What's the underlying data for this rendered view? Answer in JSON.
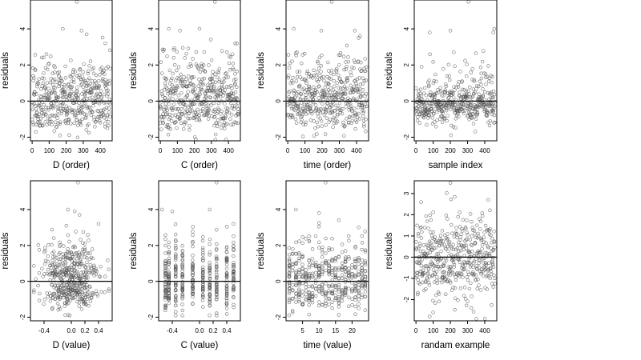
{
  "chart_data": [
    {
      "type": "scatter",
      "xlabel": "D (order)",
      "ylabel": "residuals",
      "xlim": [
        -10,
        470
      ],
      "ylim": [
        -2.2,
        5.6
      ],
      "xticks": [
        0,
        100,
        200,
        300,
        400
      ],
      "xtick_labels": [
        "0",
        "100",
        "200",
        "300",
        "400"
      ],
      "yticks": [
        -2,
        0,
        2,
        4
      ],
      "ytick_labels": [
        "-2",
        "0",
        "2",
        "4"
      ],
      "reference_line_y": 0,
      "n_points": 460,
      "pattern": "order",
      "seed": 11,
      "highlights": [
        [
          262,
          5.5
        ],
        [
          180,
          4.0
        ],
        [
          290,
          3.9
        ],
        [
          320,
          3.7
        ],
        [
          430,
          3.2
        ]
      ]
    },
    {
      "type": "scatter",
      "xlabel": "C (order)",
      "ylabel": "residuals",
      "xlim": [
        -10,
        470
      ],
      "ylim": [
        -2.2,
        5.6
      ],
      "xticks": [
        0,
        100,
        200,
        300,
        400
      ],
      "xtick_labels": [
        "0",
        "100",
        "200",
        "300",
        "400"
      ],
      "yticks": [
        -2,
        0,
        2,
        4
      ],
      "ytick_labels": [
        "-2",
        "0",
        "2",
        "4"
      ],
      "reference_line_y": 0,
      "n_points": 460,
      "pattern": "order",
      "seed": 23,
      "highlights": [
        [
          320,
          5.5
        ],
        [
          50,
          4.0
        ],
        [
          115,
          3.9
        ],
        [
          230,
          4.0
        ],
        [
          440,
          3.2
        ]
      ]
    },
    {
      "type": "scatter",
      "xlabel": "time (order)",
      "ylabel": "residuals",
      "xlim": [
        -10,
        470
      ],
      "ylim": [
        -2.2,
        5.6
      ],
      "xticks": [
        0,
        100,
        200,
        300,
        400
      ],
      "xtick_labels": [
        "0",
        "100",
        "200",
        "300",
        "400"
      ],
      "yticks": [
        -2,
        0,
        2,
        4
      ],
      "ytick_labels": [
        "-2",
        "0",
        "2",
        "4"
      ],
      "reference_line_y": 0,
      "n_points": 460,
      "pattern": "order",
      "seed": 37,
      "highlights": [
        [
          255,
          5.5
        ],
        [
          35,
          4.0
        ],
        [
          195,
          3.9
        ],
        [
          390,
          3.9
        ],
        [
          420,
          3.6
        ]
      ]
    },
    {
      "type": "scatter",
      "xlabel": "sample index",
      "ylabel": "residuals",
      "xlim": [
        -10,
        470
      ],
      "ylim": [
        -2.2,
        5.6
      ],
      "xticks": [
        0,
        100,
        200,
        300,
        400
      ],
      "xtick_labels": [
        "0",
        "100",
        "200",
        "300",
        "400"
      ],
      "yticks": [
        -2,
        0,
        2,
        4
      ],
      "ytick_labels": [
        "-2",
        "0",
        "2",
        "4"
      ],
      "reference_line_y": 0,
      "n_points": 460,
      "pattern": "wave",
      "seed": 41,
      "highlights": [
        [
          305,
          5.5
        ],
        [
          80,
          3.8
        ],
        [
          200,
          3.9
        ],
        [
          455,
          4.0
        ],
        [
          450,
          3.8
        ]
      ]
    },
    {
      "type": "scatter",
      "xlabel": "D (value)",
      "ylabel": "residuals",
      "xlim": [
        -0.6,
        0.6
      ],
      "ylim": [
        -2.2,
        5.6
      ],
      "xticks": [
        -0.4,
        0.0,
        0.2,
        0.4
      ],
      "xtick_labels": [
        "-0.4",
        "0.0",
        "0.2",
        "0.4"
      ],
      "yticks": [
        -2,
        0,
        2,
        4
      ],
      "ytick_labels": [
        "-2",
        "0",
        "2",
        "4"
      ],
      "reference_line_y": 0,
      "n_points": 460,
      "pattern": "value-dense",
      "seed": 53,
      "highlights": [
        [
          0.1,
          5.5
        ],
        [
          -0.05,
          4.0
        ],
        [
          0.05,
          3.9
        ],
        [
          0.12,
          3.7
        ],
        [
          0.4,
          3.2
        ]
      ]
    },
    {
      "type": "scatter",
      "xlabel": "C (value)",
      "ylabel": "residuals",
      "xlim": [
        -0.6,
        0.6
      ],
      "ylim": [
        -2.2,
        5.6
      ],
      "xticks": [
        -0.4,
        0.0,
        0.2,
        0.4
      ],
      "xtick_labels": [
        "-0.4",
        "0.0",
        "0.2",
        "0.4"
      ],
      "yticks": [
        -2,
        0,
        2,
        4
      ],
      "ytick_labels": [
        "-2",
        "0",
        "2",
        "4"
      ],
      "reference_line_y": 0,
      "n_points": 460,
      "pattern": "discrete",
      "x_levels": [
        -0.5,
        -0.45,
        -0.35,
        -0.25,
        -0.1,
        0.05,
        0.15,
        0.25,
        0.4,
        0.5
      ],
      "seed": 67,
      "highlights": [
        [
          0.25,
          5.5
        ],
        [
          -0.55,
          4.0
        ],
        [
          -0.4,
          3.9
        ],
        [
          0.15,
          4.0
        ],
        [
          0.5,
          3.2
        ]
      ]
    },
    {
      "type": "scatter",
      "xlabel": "time (value)",
      "ylabel": "residuals",
      "xlim": [
        0,
        25
      ],
      "ylim": [
        -2.2,
        5.6
      ],
      "xticks": [
        5,
        10,
        15,
        20
      ],
      "xtick_labels": [
        "5",
        "10",
        "15",
        "20"
      ],
      "yticks": [
        -2,
        0,
        2,
        4
      ],
      "ytick_labels": [
        "-2",
        "0",
        "2",
        "4"
      ],
      "reference_line_y": 0,
      "n_points": 460,
      "pattern": "discrete",
      "x_levels": [
        1,
        2,
        3,
        4,
        5,
        6,
        7,
        8,
        9,
        10,
        11,
        12,
        13,
        14,
        15,
        16,
        17,
        18,
        19,
        20,
        21,
        22,
        23,
        24
      ],
      "seed": 71,
      "highlights": [
        [
          12,
          5.5
        ],
        [
          3,
          4.0
        ],
        [
          10,
          3.8
        ],
        [
          16,
          3.4
        ],
        [
          22,
          3.0
        ]
      ]
    },
    {
      "type": "scatter",
      "xlabel": "randam example",
      "ylabel": "residuals",
      "xlim": [
        -10,
        470
      ],
      "ylim": [
        -3.0,
        3.6
      ],
      "xticks": [
        0,
        100,
        200,
        300,
        400
      ],
      "xtick_labels": [
        "0",
        "100",
        "200",
        "300",
        "400"
      ],
      "yticks": [
        -2,
        -1,
        0,
        1,
        2,
        3
      ],
      "ytick_labels": [
        "-2",
        "-1",
        "0",
        "1",
        "2",
        "3"
      ],
      "reference_line_y": 0,
      "n_points": 460,
      "pattern": "random",
      "seed": 89,
      "highlights": [
        [
          200,
          3.5
        ],
        [
          80,
          -2.8
        ],
        [
          100,
          -2.6
        ],
        [
          420,
          2.7
        ],
        [
          30,
          2.6
        ]
      ]
    }
  ],
  "colors": {
    "point": "#555555",
    "frame": "#000000",
    "background": "#ffffff"
  }
}
